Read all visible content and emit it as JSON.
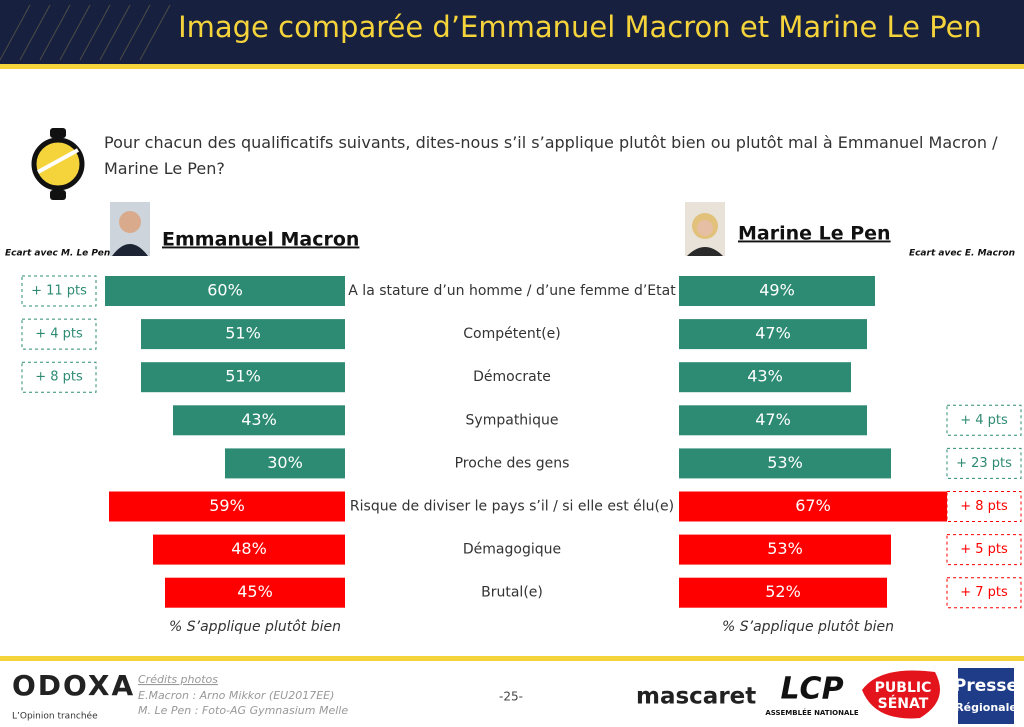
{
  "header": {
    "title": "Image comparée d’Emmanuel Macron et Marine Le Pen"
  },
  "question": "Pour chacun des qualificatifs suivants, dites-nous s’il s’applique plutôt bien ou plutôt mal à Emmanuel Macron / Marine Le Pen?",
  "chart_data": {
    "type": "bar",
    "orientation": "butterfly",
    "categories": [
      "A la stature d’un homme / d’une femme d’Etat",
      "Compétent(e)",
      "Démocrate",
      "Sympathique",
      "Proche des gens",
      "Risque de diviser le pays s’il / si elle est élu(e)",
      "Démagogique",
      "Brutal(e)"
    ],
    "xlim": [
      0,
      70
    ],
    "series": [
      {
        "name": "Emmanuel Macron",
        "values": [
          60,
          51,
          51,
          43,
          30,
          59,
          48,
          45
        ],
        "value_labels": [
          "60%",
          "51%",
          "51%",
          "43%",
          "30%",
          "59%",
          "48%",
          "45%"
        ],
        "colors": [
          "#2e8b73",
          "#2e8b73",
          "#2e8b73",
          "#2e8b73",
          "#2e8b73",
          "#ff0000",
          "#ff0000",
          "#ff0000"
        ],
        "axis_label": "% S’applique plutôt bien",
        "gap_title": "Ecart avec M. Le Pen",
        "gaps": [
          11,
          4,
          8,
          null,
          null,
          null,
          null,
          null
        ],
        "gap_labels": [
          "+ 11 pts",
          "+ 4 pts",
          "+ 8 pts",
          null,
          null,
          null,
          null,
          null
        ]
      },
      {
        "name": "Marine Le Pen",
        "values": [
          49,
          47,
          43,
          47,
          53,
          67,
          53,
          52
        ],
        "value_labels": [
          "49%",
          "47%",
          "43%",
          "47%",
          "53%",
          "67%",
          "53%",
          "52%"
        ],
        "colors": [
          "#2e8b73",
          "#2e8b73",
          "#2e8b73",
          "#2e8b73",
          "#2e8b73",
          "#ff0000",
          "#ff0000",
          "#ff0000"
        ],
        "axis_label": "% S’applique plutôt bien",
        "gap_title": "Ecart avec E. Macron",
        "gaps": [
          null,
          null,
          null,
          4,
          23,
          8,
          5,
          7
        ],
        "gap_labels": [
          null,
          null,
          null,
          "+ 4 pts",
          "+ 23 pts",
          "+ 8 pts",
          "+ 5 pts",
          "+ 7 pts"
        ]
      }
    ]
  },
  "footer": {
    "brand": "ODOXA",
    "tagline": "L’Opinion tranchée",
    "credits_title": "Crédits photos",
    "credits": [
      "E.Macron : Arno Mikkor (EU2017EE)",
      "M. Le Pen : Foto-AG Gymnasium Melle"
    ],
    "page": "-25-",
    "logos": [
      "mascaret",
      "LCP",
      "ASSEMBLÉE NATIONALE",
      "PUBLIC",
      "SÉNAT",
      "Presse",
      "Régionale"
    ]
  }
}
